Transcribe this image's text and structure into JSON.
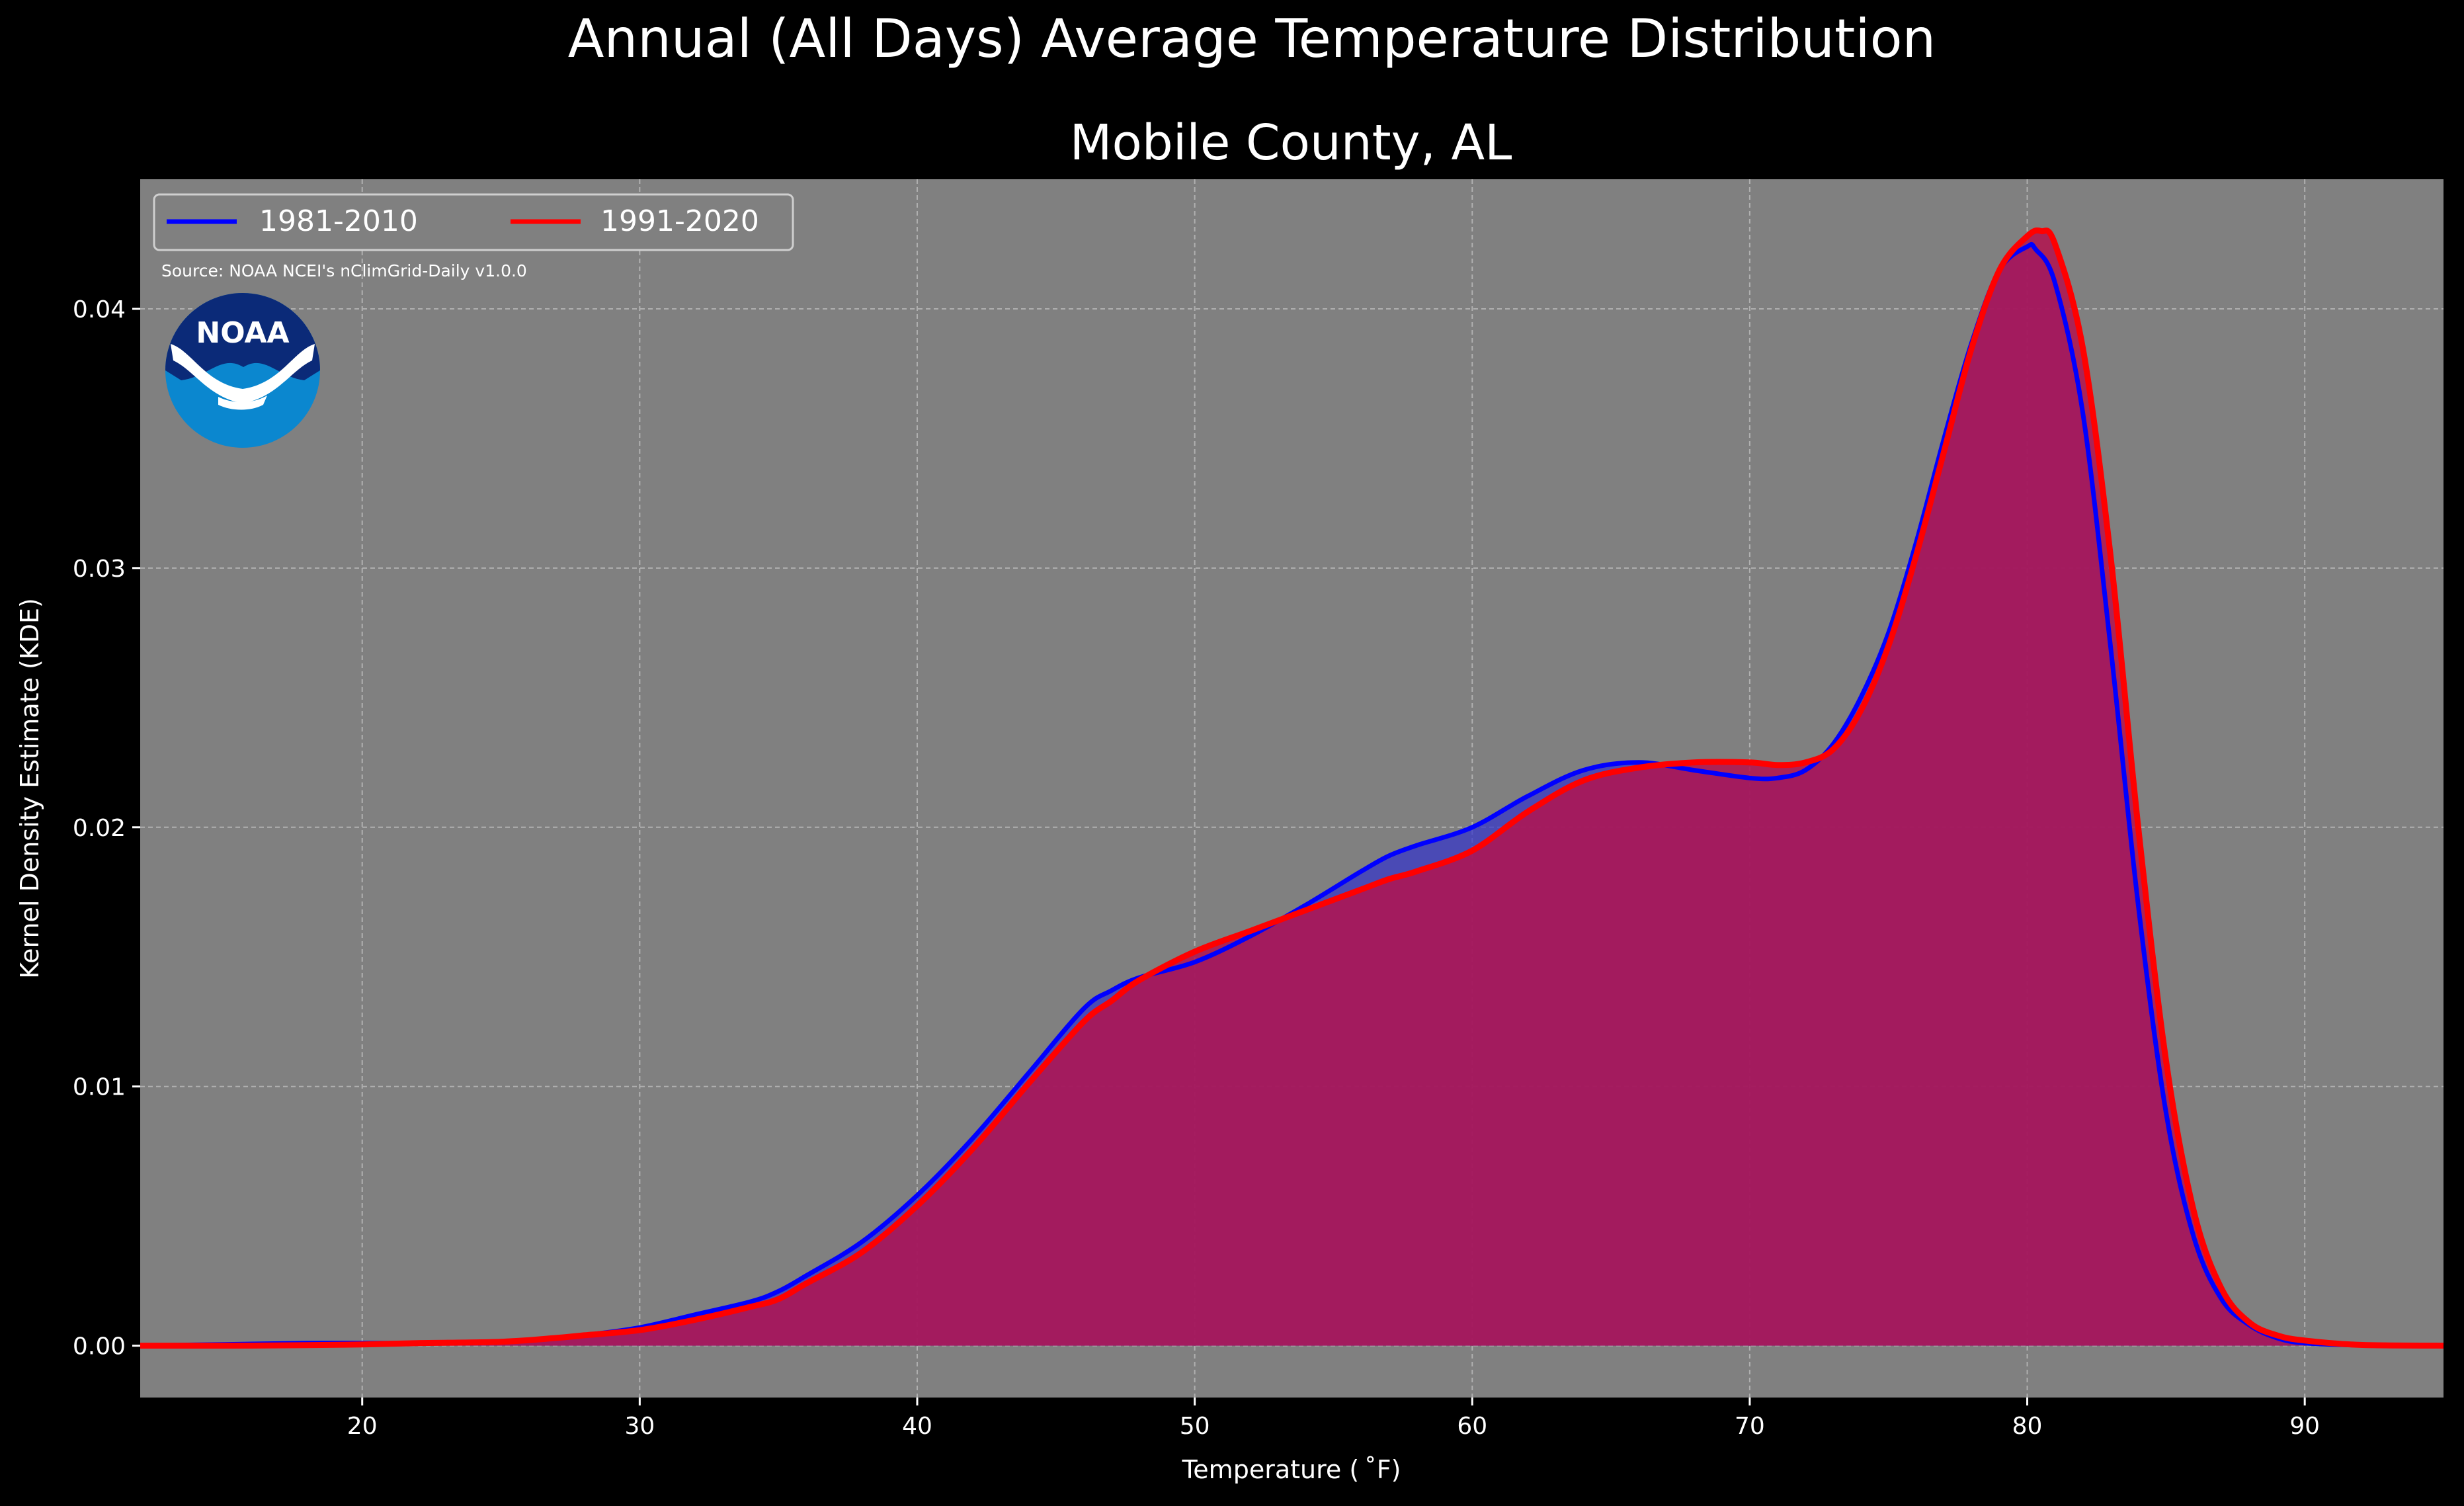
{
  "chart_data": {
    "type": "area",
    "suptitle": "Annual (All Days) Average Temperature Distribution",
    "title": "Mobile County, AL",
    "xlabel": "Temperature ($^\\circ$F)",
    "xlabel_display": "Temperature ( ˚F)",
    "ylabel": "Kernel Density Estimate (KDE)",
    "source_note": "Source: NOAA NCEI's nClimGrid-Daily v1.0.0",
    "logo_text": "NOAA",
    "xlim": [
      12,
      95
    ],
    "ylim": [
      -0.002,
      0.045
    ],
    "xticks": [
      20,
      30,
      40,
      50,
      60,
      70,
      80,
      90
    ],
    "yticks": [
      0.0,
      0.01,
      0.02,
      0.03,
      0.04
    ],
    "ytick_labels": [
      "0.00",
      "0.01",
      "0.02",
      "0.03",
      "0.04"
    ],
    "grid": true,
    "legend_position": "top-left",
    "background_color": "#808080",
    "series": [
      {
        "name": "1981-2010",
        "line_color": "#0000ff",
        "fill_color": "#3333cc",
        "x": [
          12,
          15,
          18,
          20,
          22,
          25,
          27,
          28,
          30,
          32,
          34,
          35,
          36,
          38,
          40,
          42,
          44,
          46,
          47,
          48,
          50,
          52,
          54,
          56,
          57,
          58,
          60,
          62,
          64,
          66,
          68,
          70,
          71,
          72,
          73,
          74,
          75,
          76,
          77,
          78,
          79,
          80,
          80.3,
          81,
          82,
          83,
          84,
          85,
          86,
          87,
          88,
          89,
          90,
          92,
          95
        ],
        "y": [
          0.0,
          5e-05,
          0.0001,
          0.0001,
          0.0001,
          0.00015,
          0.0003,
          0.0004,
          0.0007,
          0.0012,
          0.0017,
          0.0021,
          0.0027,
          0.004,
          0.0058,
          0.008,
          0.0105,
          0.013,
          0.0137,
          0.0142,
          0.0148,
          0.0158,
          0.017,
          0.0183,
          0.0189,
          0.0193,
          0.02,
          0.0212,
          0.0222,
          0.0225,
          0.0222,
          0.0219,
          0.0219,
          0.0222,
          0.0232,
          0.025,
          0.0275,
          0.031,
          0.035,
          0.0387,
          0.0415,
          0.0424,
          0.0423,
          0.041,
          0.036,
          0.027,
          0.017,
          0.009,
          0.0042,
          0.0018,
          0.0008,
          0.0003,
          0.0001,
          2e-05,
          0.0
        ]
      },
      {
        "name": "1991-2020",
        "line_color": "#ff0000",
        "fill_color": "#b3134f",
        "x": [
          12,
          15,
          18,
          20,
          22,
          25,
          27,
          28,
          30,
          32,
          34,
          35,
          36,
          38,
          40,
          42,
          44,
          46,
          47,
          48,
          50,
          52,
          54,
          56,
          57,
          58,
          60,
          62,
          64,
          66,
          68,
          70,
          71,
          72,
          73,
          74,
          75,
          76,
          77,
          78,
          79,
          80,
          80.5,
          81,
          82,
          83,
          84,
          85,
          86,
          87,
          88,
          89,
          90,
          92,
          95
        ],
        "y": [
          0.0,
          0.0,
          2e-05,
          5e-05,
          0.0001,
          0.00015,
          0.0003,
          0.0004,
          0.0006,
          0.001,
          0.0015,
          0.0018,
          0.0024,
          0.0036,
          0.0054,
          0.0076,
          0.0101,
          0.0125,
          0.0133,
          0.0141,
          0.0152,
          0.016,
          0.0168,
          0.0176,
          0.018,
          0.0183,
          0.0191,
          0.0206,
          0.0218,
          0.0223,
          0.0225,
          0.0225,
          0.0224,
          0.0225,
          0.023,
          0.0245,
          0.027,
          0.0305,
          0.0345,
          0.0385,
          0.0415,
          0.0428,
          0.043,
          0.0425,
          0.0385,
          0.0305,
          0.02,
          0.011,
          0.0052,
          0.0022,
          0.0009,
          0.0004,
          0.0002,
          3e-05,
          0.0
        ]
      }
    ]
  }
}
